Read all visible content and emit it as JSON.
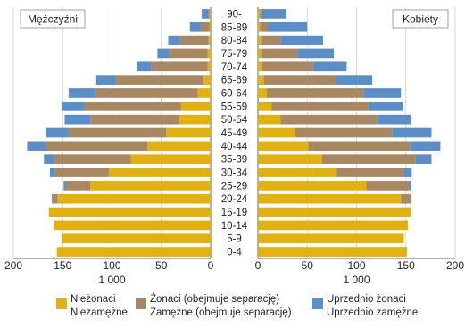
{
  "chart_data": {
    "type": "bar",
    "orientation": "horizontal",
    "layout": "population-pyramid",
    "categories": [
      "90-",
      "85-89",
      "80-84",
      "75-79",
      "70-74",
      "65-69",
      "60-64",
      "55-59",
      "50-54",
      "45-49",
      "40-44",
      "35-39",
      "30-34",
      "25-29",
      "20-24",
      "15-19",
      "10-14",
      "5-9",
      "0-4"
    ],
    "x_axis_unit": "1 000",
    "xlim": [
      0,
      200
    ],
    "x_ticks": [
      "200",
      "150",
      "100",
      "50",
      "0"
    ],
    "x_ticks_right": [
      "0",
      "50",
      "100",
      "150",
      "200"
    ],
    "grid": true,
    "stacked": true,
    "panels": [
      {
        "label": "Mężczyźni",
        "side": "left",
        "series": [
          {
            "key": "single",
            "values": [
              1,
              1,
              2,
              3,
              3,
              7,
              13,
              30,
              32,
              45,
              64,
              81,
              103,
              122,
              155,
              164,
              159,
              151,
              156
            ]
          },
          {
            "key": "married",
            "values": [
              1,
              9,
              29,
              39,
              57,
              89,
              104,
              98,
              90,
              99,
              103,
              78,
              55,
              25,
              5,
              0,
              0,
              0,
              0
            ]
          },
          {
            "key": "previously",
            "values": [
              7,
              11,
              12,
              12,
              15,
              20,
              27,
              23,
              26,
              23,
              19,
              10,
              5,
              2,
              1,
              0,
              0,
              0,
              0
            ]
          }
        ]
      },
      {
        "label": "Kobiety",
        "side": "right",
        "series": [
          {
            "key": "single",
            "values": [
              2,
              2,
              3,
              3,
              4,
              6,
              9,
              14,
              23,
              38,
              51,
              65,
              80,
              110,
              145,
              155,
              152,
              148,
              151
            ]
          },
          {
            "key": "married",
            "values": [
              1,
              8,
              20,
              37,
              52,
              73,
              98,
              98,
              98,
              98,
              103,
              95,
              68,
              43,
              10,
              0,
              0,
              0,
              0
            ]
          },
          {
            "key": "previously",
            "values": [
              26,
              40,
              43,
              37,
              34,
              37,
              38,
              35,
              34,
              40,
              31,
              16,
              8,
              2,
              0,
              0,
              0,
              0,
              0
            ]
          }
        ]
      }
    ],
    "legend": {
      "placement": "bottom",
      "items": [
        {
          "key": "single",
          "label": "Nieżonaci",
          "label2": "Niezamężne",
          "color": "#e1b012"
        },
        {
          "key": "married",
          "label": "Żonaci (obejmuje separację)",
          "label2": "Zamężne (obejmuje separację)",
          "color": "#a88763"
        },
        {
          "key": "previously",
          "label": "Uprzednio żonaci",
          "label2": "Uprzednio zamężne",
          "color": "#5b8ec6"
        }
      ]
    }
  }
}
